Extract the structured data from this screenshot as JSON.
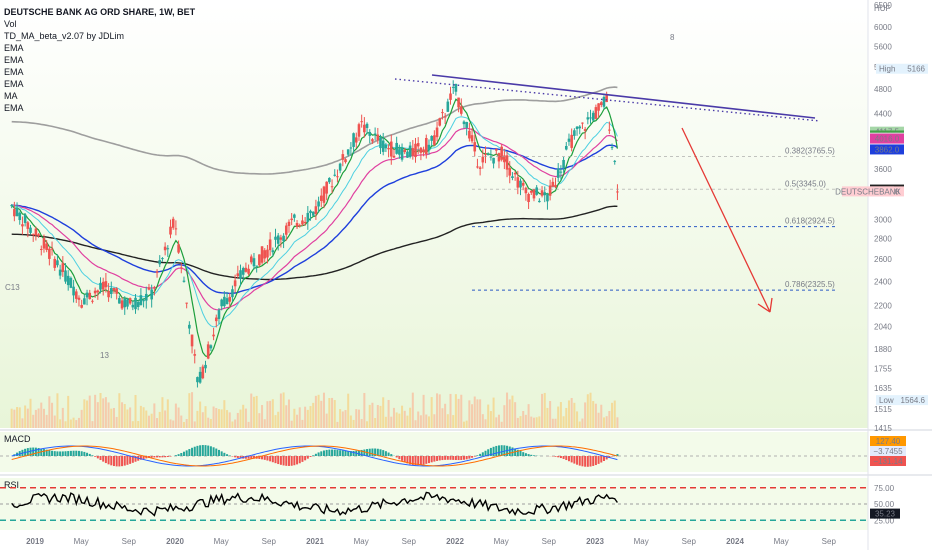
{
  "header": {
    "title": "DEUTSCHE BANK AG ORD SHARE, 1W, BET",
    "indicators": [
      "Vol",
      "TD_MA_beta_v2.07 by JDLim",
      "EMA",
      "EMA",
      "EMA",
      "EMA",
      "MA",
      "EMA"
    ]
  },
  "currency": "HUF",
  "colors": {
    "up": "#26a69a",
    "down": "#ef5350",
    "bg_green": "#e8f5d8",
    "trend": "#4a3aa8",
    "arrow": "#e53935",
    "fib": "#2b59c3",
    "ma_black": "#222222",
    "ma_grey": "#9e9e9e",
    "ma_blue": "#1e3fdc",
    "ma_pink": "#e040a0",
    "ma_light": "#4dd0e1",
    "ma_green": "#1b9e3a"
  },
  "chart_data": {
    "type": "candlestick",
    "title": "DEUTSCHE BANK AG ORD SHARE, 1W, BET",
    "xlabel": "",
    "ylabel": "",
    "ylim": [
      1415,
      6500
    ],
    "y_scale": "log",
    "y_ticks": [
      "6500",
      "6000",
      "5600",
      "5200",
      "4800",
      "4400",
      "4000",
      "3600",
      "3000",
      "2800",
      "2600",
      "2400",
      "2200",
      "2040",
      "1880",
      "1755",
      "1635",
      "1515",
      "1415"
    ],
    "x_ticks": [
      "2019",
      "May",
      "Sep",
      "2020",
      "May",
      "Sep",
      "2021",
      "May",
      "Sep",
      "2022",
      "May",
      "Sep",
      "2023",
      "May",
      "Sep",
      "2024",
      "May",
      "Sep"
    ],
    "price_series": [
      {
        "date": "2018-11",
        "close": 3150
      },
      {
        "date": "2019-01",
        "close": 2850
      },
      {
        "date": "2019-03",
        "close": 2550
      },
      {
        "date": "2019-05",
        "close": 2250
      },
      {
        "date": "2019-07",
        "close": 2350
      },
      {
        "date": "2019-09",
        "close": 2200
      },
      {
        "date": "2019-11",
        "close": 2300
      },
      {
        "date": "2020-01",
        "close": 3000
      },
      {
        "date": "2020-03",
        "close": 1650
      },
      {
        "date": "2020-05",
        "close": 2200
      },
      {
        "date": "2020-07",
        "close": 2500
      },
      {
        "date": "2020-09",
        "close": 2700
      },
      {
        "date": "2020-11",
        "close": 2950
      },
      {
        "date": "2021-01",
        "close": 3100
      },
      {
        "date": "2021-03",
        "close": 3600
      },
      {
        "date": "2021-05",
        "close": 4200
      },
      {
        "date": "2021-07",
        "close": 3900
      },
      {
        "date": "2021-09",
        "close": 3800
      },
      {
        "date": "2021-11",
        "close": 3950
      },
      {
        "date": "2022-01",
        "close": 4800
      },
      {
        "date": "2022-03",
        "close": 3700
      },
      {
        "date": "2022-05",
        "close": 3800
      },
      {
        "date": "2022-07",
        "close": 3300
      },
      {
        "date": "2022-09",
        "close": 3250
      },
      {
        "date": "2022-11",
        "close": 4000
      },
      {
        "date": "2023-01",
        "close": 4400
      },
      {
        "date": "2023-02",
        "close": 4600
      },
      {
        "date": "2023-03",
        "close": 3320
      }
    ],
    "fibonacci": [
      {
        "label": "0.382(3765.5)",
        "value": 3765.5
      },
      {
        "label": "0.5(3345.0)",
        "value": 3345.0
      },
      {
        "label": "0.618(2924.5)",
        "value": 2924.5
      },
      {
        "label": "0.786(2325.5)",
        "value": 2325.5
      }
    ],
    "price_labels": [
      {
        "text": "4117.5",
        "value": 4117.5,
        "color": "#a5d6a7"
      },
      {
        "text": "4061.5",
        "value": 4061.5,
        "color": "#43a047"
      },
      {
        "text": "4029.0",
        "value": 4029.0,
        "color": "#e0e0e0"
      },
      {
        "text": "4016.0",
        "value": 4016.0,
        "color": "#e040a0"
      },
      {
        "text": "3862.0",
        "value": 3862.0,
        "color": "#1e3fdc"
      },
      {
        "text": "3342.0",
        "value": 3342.0,
        "color": "#222222"
      },
      {
        "text": "3320.0",
        "value": 3320.0,
        "color": "#ffcdd2"
      }
    ],
    "high_label": {
      "text": "High",
      "value": "5166"
    },
    "low_label": {
      "text": "Low",
      "value": "1564.6"
    },
    "symbol_tag": "DEUTSCHEBANK",
    "annotations": [
      "C13",
      "13",
      "8"
    ],
    "macd": {
      "label": "MACD",
      "values": [
        "127.40",
        "−3.7455",
        "−131.14"
      ]
    },
    "rsi": {
      "label": "RSI",
      "ticks": [
        "75.00",
        "50.00",
        "25.00"
      ],
      "value": "35.23"
    }
  }
}
